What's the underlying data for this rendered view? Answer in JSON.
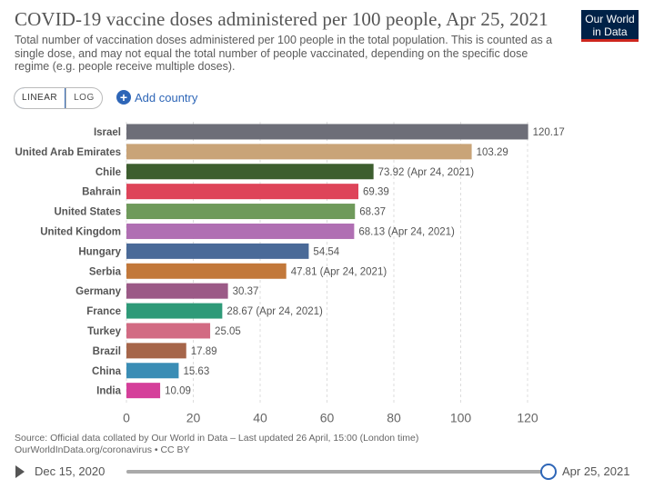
{
  "header": {
    "title": "COVID-19 vaccine doses administered per 100 people, Apr 25, 2021",
    "subtitle": "Total number of vaccination doses administered per 100 people in the total population. This is counted as a single dose, and may not equal the total number of people vaccinated, depending on the specific dose regime (e.g. people receive multiple doses).",
    "logo_line1": "Our World",
    "logo_line2": "in Data"
  },
  "controls": {
    "linear_label": "LINEAR",
    "log_label": "LOG",
    "add_country_label": "Add country"
  },
  "chart_data": {
    "type": "bar",
    "orientation": "horizontal",
    "title": "COVID-19 vaccine doses administered per 100 people, Apr 25, 2021",
    "categories": [
      "Israel",
      "United Arab Emirates",
      "Chile",
      "Bahrain",
      "United States",
      "United Kingdom",
      "Hungary",
      "Serbia",
      "Germany",
      "France",
      "Turkey",
      "Brazil",
      "China",
      "India"
    ],
    "values": [
      120.17,
      103.29,
      73.92,
      69.39,
      68.37,
      68.13,
      54.54,
      47.81,
      30.37,
      28.67,
      25.05,
      17.89,
      15.63,
      10.09
    ],
    "labels": [
      "120.17",
      "103.29",
      "73.92 (Apr 24, 2021)",
      "69.39",
      "68.37",
      "68.13 (Apr 24, 2021)",
      "54.54",
      "47.81 (Apr 24, 2021)",
      "30.37",
      "28.67 (Apr 24, 2021)",
      "25.05",
      "17.89",
      "15.63",
      "10.09"
    ],
    "colors": [
      "#6d6e78",
      "#c9a478",
      "#3d5e2f",
      "#de4459",
      "#6f9a5b",
      "#b06fb3",
      "#4a6a98",
      "#c2783a",
      "#9b5a87",
      "#2e9a78",
      "#d26b83",
      "#a6664a",
      "#3a8db5",
      "#d53f9a"
    ],
    "xlim": [
      0,
      120
    ],
    "xticks": [
      0,
      20,
      40,
      60,
      80,
      100,
      120
    ],
    "xlabel": "",
    "ylabel": "",
    "grid": true
  },
  "footer": {
    "source_line1": "Source: Official data collated by Our World in Data – Last updated 26 April, 15:00 (London time)",
    "source_line2": "OurWorldInData.org/coronavirus • CC BY"
  },
  "timeline": {
    "start_date": "Dec 15, 2020",
    "end_date": "Apr 25, 2021",
    "position_fraction": 1.0
  }
}
